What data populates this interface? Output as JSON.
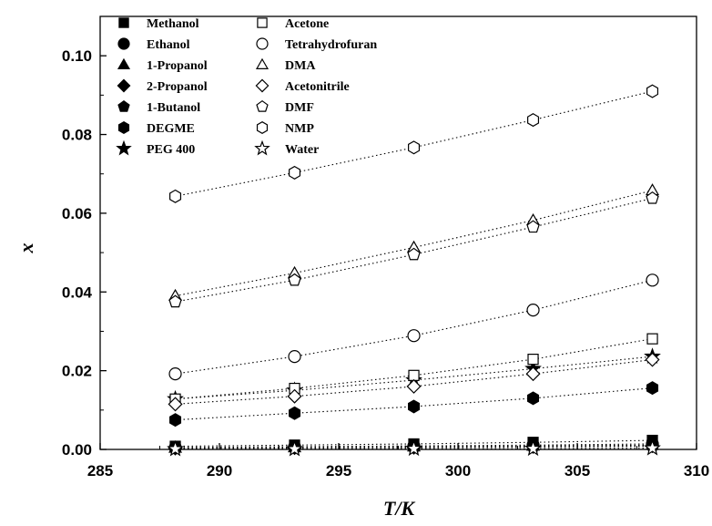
{
  "chart_data": {
    "type": "scatter",
    "title": "",
    "xlabel": "T/K",
    "ylabel": "x",
    "xlim": [
      285,
      310
    ],
    "ylim": [
      0,
      0.11
    ],
    "xticks": [
      285,
      290,
      295,
      300,
      305,
      310
    ],
    "xtick_labels": [
      "285",
      "290",
      "295",
      "300",
      "305",
      "310"
    ],
    "yticks": [
      0.0,
      0.02,
      0.04,
      0.06,
      0.08,
      0.1
    ],
    "ytick_labels": [
      "0.00",
      "0.02",
      "0.04",
      "0.06",
      "0.08",
      "0.10"
    ],
    "grid": false,
    "legend_position": "top-left",
    "trendlines": "dotted",
    "x": [
      288.15,
      293.15,
      298.15,
      303.15,
      308.15
    ],
    "series": [
      {
        "name": "Methanol",
        "marker": "square",
        "filled": true,
        "values": [
          0.0008,
          0.0011,
          0.0014,
          0.0018,
          0.0023
        ]
      },
      {
        "name": "Ethanol",
        "marker": "circle",
        "filled": true,
        "values": [
          0.0005,
          0.0007,
          0.0009,
          0.0011,
          0.0014
        ]
      },
      {
        "name": "1-Propanol",
        "marker": "triangle",
        "filled": true,
        "values": [
          0.0004,
          0.0005,
          0.0007,
          0.0009,
          0.0011
        ]
      },
      {
        "name": "2-Propanol",
        "marker": "diamond",
        "filled": true,
        "values": [
          0.0003,
          0.0004,
          0.0005,
          0.0007,
          0.0009
        ]
      },
      {
        "name": "1-Butanol",
        "marker": "pentagon",
        "filled": true,
        "values": [
          0.0003,
          0.0004,
          0.0005,
          0.0006,
          0.0008
        ]
      },
      {
        "name": "DEGME",
        "marker": "hexagon",
        "filled": true,
        "values": [
          0.0075,
          0.0092,
          0.0109,
          0.013,
          0.0156
        ]
      },
      {
        "name": "PEG 400",
        "marker": "star",
        "filled": true,
        "values": [
          0.0128,
          0.015,
          0.0176,
          0.0205,
          0.0236
        ]
      },
      {
        "name": "Acetone",
        "marker": "square",
        "filled": false,
        "values": [
          0.0128,
          0.0155,
          0.0188,
          0.0229,
          0.0281
        ]
      },
      {
        "name": "Tetrahydrofuran",
        "marker": "circle",
        "filled": false,
        "values": [
          0.0192,
          0.0236,
          0.0289,
          0.0354,
          0.043
        ]
      },
      {
        "name": "DMA",
        "marker": "triangle",
        "filled": false,
        "values": [
          0.039,
          0.0448,
          0.0513,
          0.0582,
          0.0658
        ]
      },
      {
        "name": "Acetonitrile",
        "marker": "diamond",
        "filled": false,
        "values": [
          0.0115,
          0.0135,
          0.016,
          0.0192,
          0.0228
        ]
      },
      {
        "name": "DMF",
        "marker": "pentagon",
        "filled": false,
        "values": [
          0.0375,
          0.043,
          0.0495,
          0.0565,
          0.0638
        ]
      },
      {
        "name": "NMP",
        "marker": "hexagon",
        "filled": false,
        "values": [
          0.0643,
          0.0703,
          0.0767,
          0.0837,
          0.091
        ]
      },
      {
        "name": "Water",
        "marker": "star",
        "filled": false,
        "values": [
          0.0001,
          0.0001,
          0.0002,
          0.0002,
          0.0003
        ]
      }
    ]
  }
}
